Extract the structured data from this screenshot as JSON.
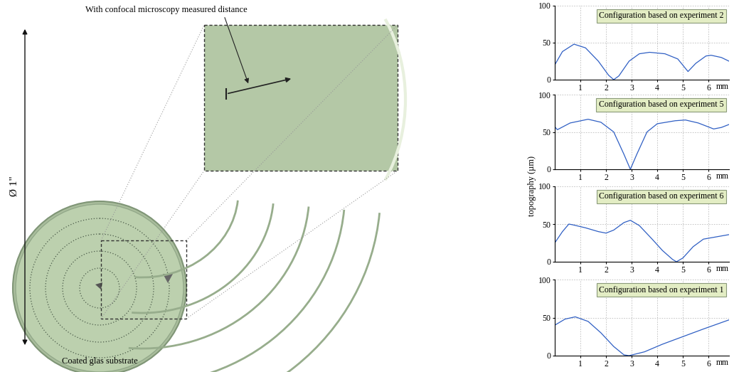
{
  "figure": {
    "ylabel": "topography (µm)",
    "image": {
      "caption": "Coated glas substrate",
      "diameter": "Ø 1\"",
      "measurement": "With confocal microscopy measured distance"
    }
  },
  "chart_data": [
    {
      "type": "line",
      "title": "Configuration based on experiment 2",
      "xlabel": "mm",
      "color": "#2f5fc4",
      "grid": true,
      "xlim": [
        0,
        6.8
      ],
      "ylim": [
        0,
        100
      ],
      "xticks": [
        1,
        2,
        3,
        4,
        5,
        6
      ],
      "yticks": [
        0,
        50,
        100
      ],
      "x": [
        0,
        0.3,
        0.75,
        1.2,
        1.7,
        2.1,
        2.3,
        2.5,
        2.9,
        3.3,
        3.7,
        4.3,
        4.8,
        5.2,
        5.5,
        5.9,
        6.1,
        6.5,
        6.8
      ],
      "values": [
        20,
        38,
        48,
        43,
        25,
        6,
        0,
        5,
        25,
        35,
        37,
        35,
        28,
        11,
        22,
        32,
        33,
        30,
        25
      ]
    },
    {
      "type": "line",
      "title": "Configuration based on experiment 5",
      "xlabel": "mm",
      "color": "#2f5fc4",
      "grid": true,
      "xlim": [
        0,
        6.8
      ],
      "ylim": [
        0,
        100
      ],
      "xticks": [
        1,
        2,
        3,
        4,
        5,
        6
      ],
      "yticks": [
        0,
        50,
        100
      ],
      "x": [
        0,
        0.1,
        0.6,
        1.3,
        1.8,
        2.3,
        2.7,
        2.95,
        3.2,
        3.6,
        4.0,
        4.7,
        5.1,
        5.6,
        6.2,
        6.5,
        6.8
      ],
      "values": [
        57,
        53,
        62,
        67,
        63,
        50,
        20,
        0,
        20,
        50,
        61,
        65,
        66,
        62,
        54,
        56,
        60
      ]
    },
    {
      "type": "line",
      "title": "Configuration based on experiment 6",
      "xlabel": "mm",
      "color": "#2f5fc4",
      "grid": true,
      "xlim": [
        0,
        6.8
      ],
      "ylim": [
        0,
        100
      ],
      "xticks": [
        1,
        2,
        3,
        4,
        5,
        6
      ],
      "yticks": [
        0,
        50,
        100
      ],
      "x": [
        0,
        0.3,
        0.55,
        0.7,
        1.2,
        1.7,
        2.0,
        2.3,
        2.7,
        2.95,
        3.3,
        3.8,
        4.2,
        4.6,
        4.75,
        5.0,
        5.4,
        5.8,
        6.3,
        6.8
      ],
      "values": [
        25,
        40,
        50,
        49,
        45,
        40,
        38,
        42,
        52,
        55,
        48,
        30,
        15,
        3,
        0,
        5,
        20,
        30,
        33,
        36
      ]
    },
    {
      "type": "line",
      "title": "Configuration based on experiment 1",
      "xlabel": "mm",
      "color": "#2f5fc4",
      "grid": true,
      "xlim": [
        0,
        6.8
      ],
      "ylim": [
        0,
        100
      ],
      "xticks": [
        1,
        2,
        3,
        4,
        5,
        6
      ],
      "yticks": [
        0,
        50,
        100
      ],
      "x": [
        0,
        0.4,
        0.8,
        1.3,
        1.8,
        2.3,
        2.7,
        2.9,
        3.5,
        4.2,
        5.0,
        5.8,
        6.8
      ],
      "values": [
        40,
        48,
        51,
        45,
        30,
        12,
        1,
        0,
        5,
        15,
        25,
        35,
        47
      ]
    }
  ]
}
